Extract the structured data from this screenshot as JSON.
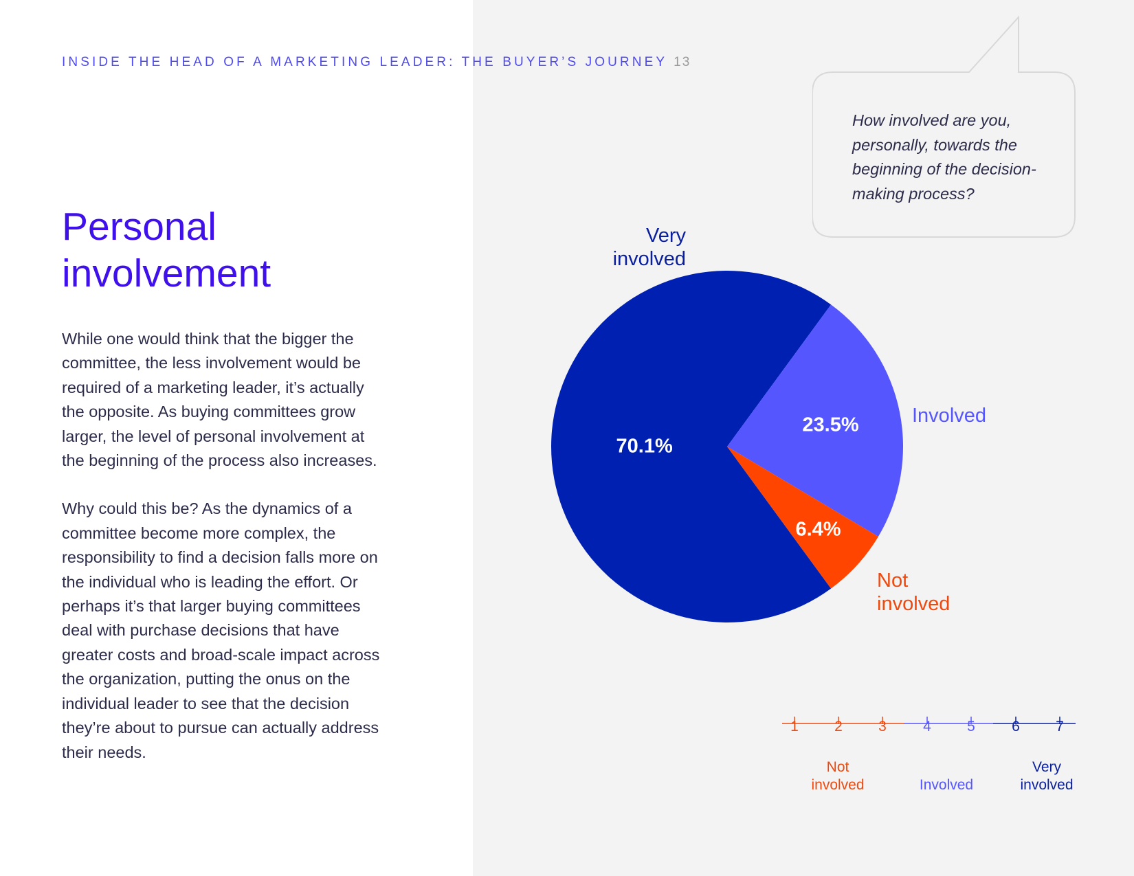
{
  "header": {
    "title": "INSIDE THE HEAD OF A MARKETING LEADER: THE BUYER’S JOURNEY",
    "page_number": "13"
  },
  "section": {
    "title_line1": "Personal",
    "title_line2": "involvement"
  },
  "body": {
    "paragraph1": "While one would think that the bigger the committee, the less involvement would be required of a marketing leader, it’s actually the opposite. As buying committees grow larger, the level of personal involvement at the beginning of the process also increases.",
    "paragraph2": "Why could this be? As the dynamics of a committee become more complex, the responsibility to find a decision falls more on the individual who is leading the effort. Or perhaps it’s that larger buying committees deal with purchase decisions that have greater costs and broad-scale impact across the organization, putting the onus on the individual leader to see that the decision they’re about to pursue can actually address their needs."
  },
  "question": {
    "text": "How involved are you, personally, towards the beginning of the decision-making process?"
  },
  "colors": {
    "very_involved": "#0020b2",
    "involved": "#5656ff",
    "not_involved": "#ff4500",
    "accent_title": "#3f10ec"
  },
  "chart_data": {
    "type": "pie",
    "slices": [
      {
        "name": "Very involved",
        "label_line1": "Very",
        "label_line2": "involved",
        "value": 70.1,
        "display": "70.1%",
        "color": "#0020b2"
      },
      {
        "name": "Involved",
        "label_line1": "Involved",
        "label_line2": "",
        "value": 23.5,
        "display": "23.5%",
        "color": "#5656ff"
      },
      {
        "name": "Not involved",
        "label_line1": "Not",
        "label_line2": "involved",
        "value": 6.4,
        "display": "6.4%",
        "color": "#ff4500"
      }
    ]
  },
  "scale_legend": {
    "ticks": [
      "1",
      "2",
      "3",
      "4",
      "5",
      "6",
      "7"
    ],
    "categories": [
      {
        "line1": "Not",
        "line2": "involved",
        "color": "#ee4a10"
      },
      {
        "line1": "",
        "line2": "Involved",
        "color": "#5656ff"
      },
      {
        "line1": "Very",
        "line2": "involved",
        "color": "#0a1f9e"
      }
    ]
  }
}
